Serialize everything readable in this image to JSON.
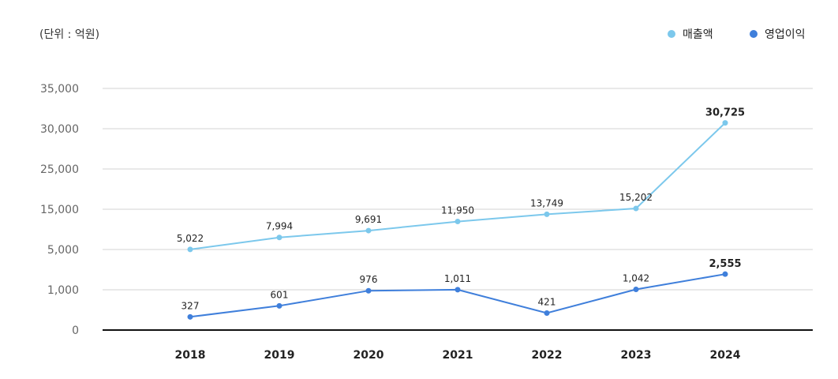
{
  "chart_data": {
    "type": "line",
    "unit_label": "(단위 : 억원)",
    "categories": [
      "2018",
      "2019",
      "2020",
      "2021",
      "2022",
      "2023",
      "2024"
    ],
    "y_ticks": [
      "0",
      "1,000",
      "5,000",
      "15,000",
      "25,000",
      "30,000",
      "35,000"
    ],
    "legend_position": "top-right",
    "grid": true,
    "series": [
      {
        "name": "매출액",
        "color": "#7CC8EC",
        "values": [
          5022,
          7994,
          9691,
          11950,
          13749,
          15202,
          30725
        ],
        "labels": [
          "5,022",
          "7,994",
          "9,691",
          "11,950",
          "13,749",
          "15,202",
          "30,725"
        ],
        "highlight_last": true
      },
      {
        "name": "영업이익",
        "color": "#3F7FDB",
        "values": [
          327,
          601,
          976,
          1011,
          421,
          1042,
          2555
        ],
        "labels": [
          "327",
          "601",
          "976",
          "1,011",
          "421",
          "1,042",
          "2,555"
        ],
        "highlight_last": true
      }
    ]
  }
}
